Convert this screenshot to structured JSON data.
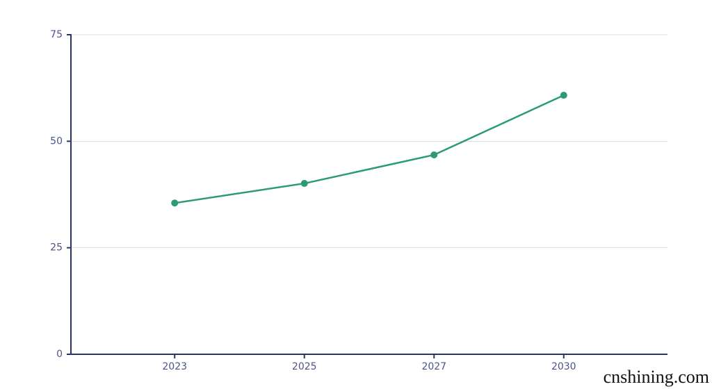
{
  "chart_data": {
    "type": "line",
    "categories": [
      "2023",
      "2025",
      "2027",
      "2030"
    ],
    "series": [
      {
        "color": "#2a9a78",
        "values": [
          35.5,
          40.1,
          46.8,
          60.8
        ]
      }
    ],
    "ylim": [
      0,
      75
    ],
    "yticks": [
      0,
      25,
      50,
      75
    ],
    "grid": true
  },
  "watermark": "cnshining.com"
}
